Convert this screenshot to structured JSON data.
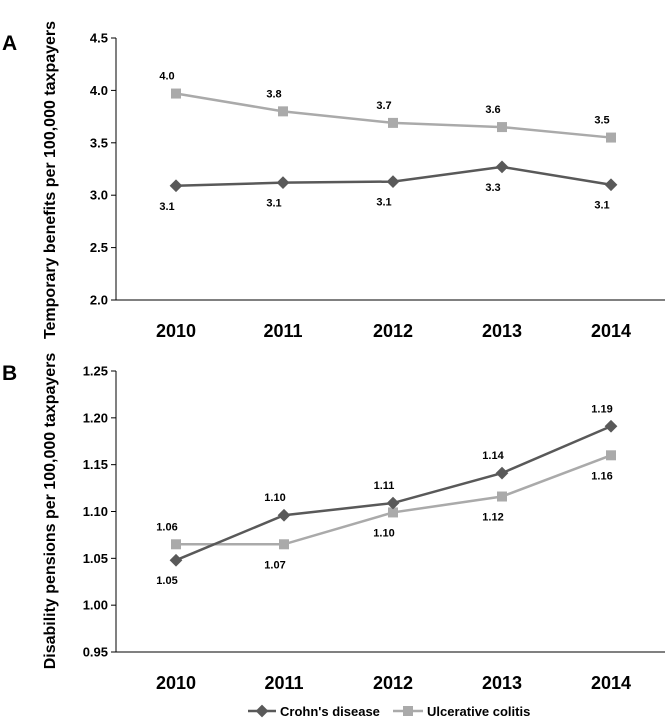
{
  "chart_data": [
    {
      "type": "line",
      "panel": "A",
      "title": "",
      "xlabel": "",
      "ylabel": "Temporary benefits per 100,000 taxpayers",
      "categories": [
        "2010",
        "2011",
        "2012",
        "2013",
        "2014"
      ],
      "ylim": [
        2.0,
        4.5
      ],
      "yticks": [
        "2.0",
        "2.5",
        "3.0",
        "3.5",
        "4.0",
        "4.5"
      ],
      "grid": false,
      "series": [
        {
          "name": "Crohn's disease",
          "color": "#595959",
          "marker": "diamond",
          "values": [
            3.09,
            3.12,
            3.13,
            3.27,
            3.1
          ],
          "labels": [
            "3.1",
            "3.1",
            "3.1",
            "3.3",
            "3.1"
          ],
          "label_position": "below"
        },
        {
          "name": "Ulcerative colitis",
          "color": "#aaaaaa",
          "marker": "square",
          "values": [
            3.97,
            3.8,
            3.69,
            3.65,
            3.55
          ],
          "labels": [
            "4.0",
            "3.8",
            "3.7",
            "3.6",
            "3.5"
          ],
          "label_position": "above"
        }
      ]
    },
    {
      "type": "line",
      "panel": "B",
      "title": "",
      "xlabel": "",
      "ylabel": "Disability pensions per 100,000 taxpayers",
      "categories": [
        "2010",
        "2011",
        "2012",
        "2013",
        "2014"
      ],
      "ylim": [
        0.95,
        1.25
      ],
      "yticks": [
        "0.95",
        "1.00",
        "1.05",
        "1.10",
        "1.15",
        "1.20",
        "1.25"
      ],
      "grid": false,
      "legend": "bottom",
      "series": [
        {
          "name": "Crohn's disease",
          "color": "#595959",
          "marker": "diamond",
          "values": [
            1.048,
            1.096,
            1.109,
            1.141,
            1.191
          ],
          "labels": [
            "1.05",
            "1.10",
            "1.11",
            "1.14",
            "1.19"
          ],
          "label_positions": [
            "below",
            "above",
            "above",
            "above",
            "above"
          ]
        },
        {
          "name": "Ulcerative colitis",
          "color": "#aaaaaa",
          "marker": "square",
          "values": [
            1.065,
            1.065,
            1.099,
            1.116,
            1.16
          ],
          "labels": [
            "1.06",
            "1.07",
            "1.10",
            "1.12",
            "1.16"
          ],
          "label_positions": [
            "above",
            "below",
            "below",
            "below",
            "below"
          ]
        }
      ]
    }
  ]
}
